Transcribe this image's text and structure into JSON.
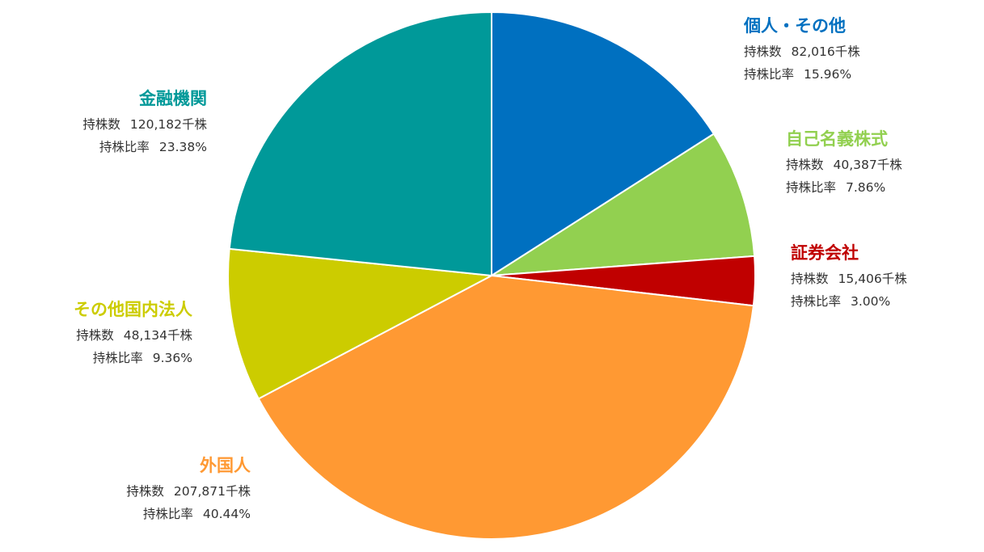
{
  "chart_data": {
    "type": "pie",
    "start_angle_deg": 0,
    "direction": "clockwise",
    "slices": [
      {
        "name": "個人・その他",
        "shares": "82,016千株",
        "ratio": "15.96%",
        "value": 15.96,
        "color": "#0070c0"
      },
      {
        "name": "自己名義株式",
        "shares": "40,387千株",
        "ratio": "7.86%",
        "value": 7.86,
        "color": "#92d050"
      },
      {
        "name": "証券会社",
        "shares": "15,406千株",
        "ratio": "3.00%",
        "value": 3.0,
        "color": "#c00000"
      },
      {
        "name": "外国人",
        "shares": "207,871千株",
        "ratio": "40.44%",
        "value": 40.44,
        "color": "#ff9933"
      },
      {
        "name": "その他国内法人",
        "shares": "48,134千株",
        "ratio": "9.36%",
        "value": 9.36,
        "color": "#cccc00"
      },
      {
        "name": "金融機関",
        "shares": "120,182千株",
        "ratio": "23.38%",
        "value": 23.38,
        "color": "#009999"
      }
    ]
  },
  "labels": {
    "shares_prefix": "持株数",
    "ratio_prefix": "持株比率"
  }
}
